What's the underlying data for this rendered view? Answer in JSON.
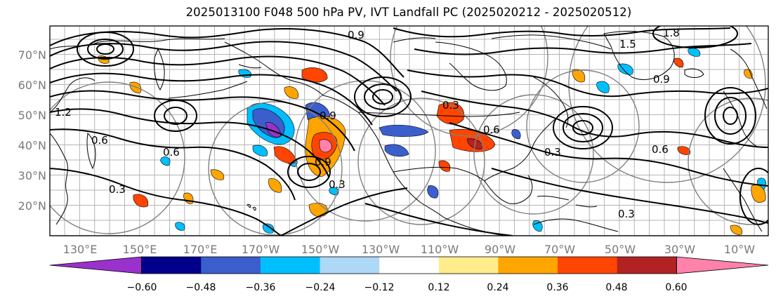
{
  "title": "2025013100 F048 500 hPa PV, IVT Landfall PC (2025020212 - 2025020512)",
  "map": {
    "lat_labels": [
      "70°N",
      "60°N",
      "50°N",
      "40°N",
      "30°N",
      "20°N"
    ],
    "lon_labels": [
      "130°E",
      "150°E",
      "170°E",
      "170°W",
      "150°W",
      "130°W",
      "110°W",
      "90°W",
      "70°W",
      "50°W",
      "30°W",
      "10°W"
    ],
    "contour_labels": [
      "0.9",
      "1.8",
      "1.5",
      "0.9",
      "0.6",
      "0.3",
      "0.6",
      "0.3",
      "0.9",
      "1.2",
      "0.3",
      "0.6",
      "0.3",
      "0.3",
      "0.6",
      "0.9"
    ],
    "colors": {
      "land_outline": "#000000",
      "grid": "#b0b0b0",
      "range_rings": "#808080",
      "contour": "#000000"
    }
  },
  "colorbar": {
    "ticks": [
      "−0.60",
      "−0.48",
      "−0.36",
      "−0.24",
      "−0.12",
      "0.12",
      "0.24",
      "0.36",
      "0.48",
      "0.60"
    ],
    "colors": [
      "#9932cc",
      "#00008b",
      "#3a5fcd",
      "#00bfff",
      "#add8f6",
      "#ffffff",
      "#ffec8b",
      "#ffa500",
      "#ff4500",
      "#b22222",
      "#ff82ab"
    ]
  }
}
